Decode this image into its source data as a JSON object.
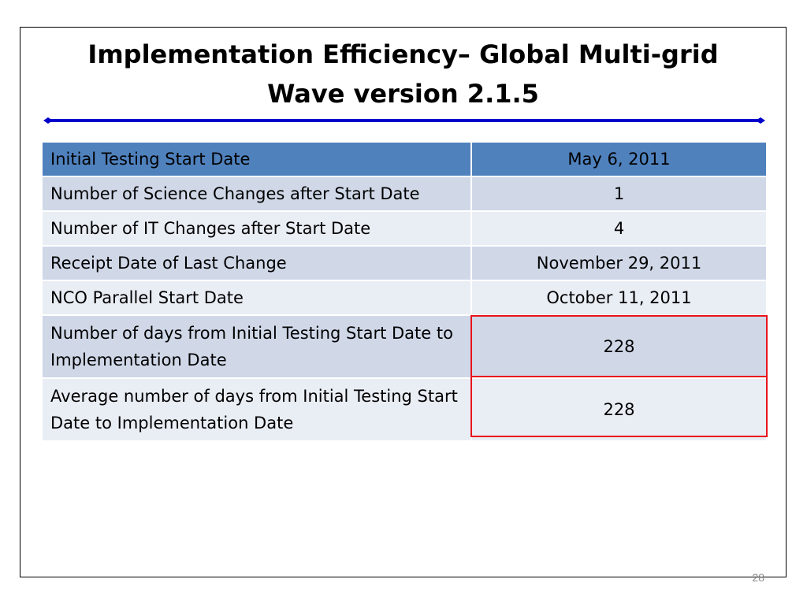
{
  "slide": {
    "title_line1": "Implementation Efficiency– Global Multi-grid",
    "title_line2": "Wave version 2.1.5",
    "slide_number": "28"
  },
  "colors": {
    "header_fill": "#4f81bd",
    "band_dark": "#d0d8e8",
    "band_light": "#e9edf4",
    "rule_blue": "#0000cc",
    "highlight_red": "#e8141c"
  },
  "table": {
    "rows": [
      {
        "label": "Initial Testing Start Date",
        "value": "May 6, 2011"
      },
      {
        "label": "Number of Science Changes after Start Date",
        "value": "1"
      },
      {
        "label": "Number of IT Changes after Start Date",
        "value": "4"
      },
      {
        "label": "Receipt Date of Last Change",
        "value": "November 29, 2011"
      },
      {
        "label": "NCO Parallel Start Date",
        "value": "October 11, 2011"
      },
      {
        "label": "Number of days from Initial Testing Start Date to Implementation Date",
        "value": "228"
      },
      {
        "label": "Average number of days from Initial Testing Start Date to Implementation Date",
        "value": "228"
      }
    ]
  }
}
